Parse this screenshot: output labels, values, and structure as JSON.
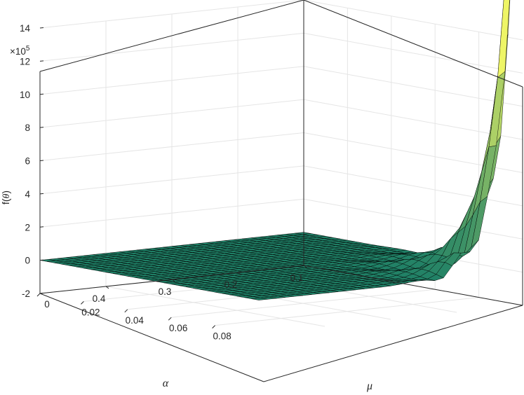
{
  "chart_data": {
    "type": "surface",
    "view": "3d-perspective",
    "zlabel_prefix": "f(",
    "zlabel_theta": "θ",
    "zlabel_suffix": ")",
    "xlabel": "α",
    "ylabel": "μ",
    "z_exponent_base": "×10",
    "z_exponent_power": "5",
    "z_tick_labels": [
      "-2",
      "0",
      "2",
      "4",
      "6",
      "8",
      "10",
      "12",
      "14"
    ],
    "x_tick_labels": [
      "0.1",
      "0.2",
      "0.3",
      "0.4"
    ],
    "y_tick_labels": [
      "0",
      "0.02",
      "0.04",
      "0.06",
      "0.08"
    ],
    "x_ticks": [
      0.1,
      0.2,
      0.3,
      0.4
    ],
    "y_ticks": [
      0,
      0.02,
      0.04,
      0.06,
      0.08
    ],
    "z_ticks": [
      -2,
      0,
      2,
      4,
      6,
      8,
      10,
      12,
      14
    ],
    "xlim": [
      0.1,
      0.5
    ],
    "ylim": [
      0,
      0.1
    ],
    "zlim": [
      -2,
      14
    ],
    "z_scale": 100000,
    "grid": true,
    "colormap": "summer",
    "colormap_low": "#1f8066",
    "colormap_high": "#eef566",
    "mesh_edge_color": "#000000",
    "grid_points": 31,
    "baseline": 0,
    "peak": {
      "alpha": 0.1,
      "mu": 0.1,
      "value": 14.5
    },
    "description_of_surface": "near zero over most of the domain; sharp ridge near small alpha and large mu reaching ~14.5e5"
  }
}
